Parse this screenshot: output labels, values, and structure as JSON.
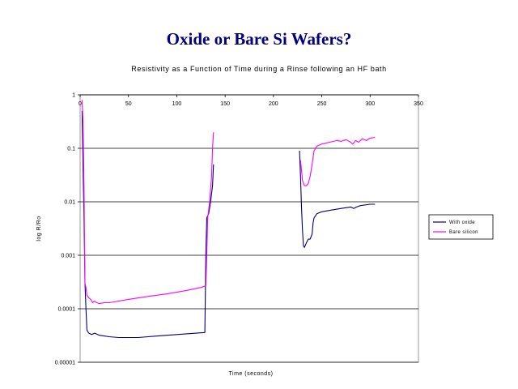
{
  "slide": {
    "title": "Oxide or Bare Si Wafers?"
  },
  "chart_data": {
    "type": "line",
    "title": "Resistivity as a Function of Time during a Rinse following an HF bath",
    "xlabel": "Time (seconds)",
    "ylabel": "log R/Ro",
    "y_scale": "log",
    "xlim": [
      0,
      350
    ],
    "ylim": [
      1e-05,
      1
    ],
    "x_ticks": [
      "0",
      "50",
      "100",
      "150",
      "200",
      "250",
      "300",
      "350"
    ],
    "x_tick_values": [
      0,
      50,
      100,
      150,
      200,
      250,
      300,
      350
    ],
    "y_ticks": [
      "1",
      "0.1",
      "0.01",
      "0.001",
      "0.0001",
      "0.00001"
    ],
    "y_tick_values": [
      1,
      0.1,
      0.01,
      0.001,
      0.0001,
      1e-05
    ],
    "x_axis_position": "top",
    "grid": "horizontal",
    "legend_position": "right",
    "series": [
      {
        "name": "With oxide",
        "color": "#000080",
        "segments": [
          [
            [
              2,
              0.5
            ],
            [
              4,
              0.005
            ],
            [
              5,
              0.0003
            ],
            [
              6,
              0.0001
            ],
            [
              7,
              4e-05
            ],
            [
              9,
              3.5e-05
            ],
            [
              12,
              3.3e-05
            ],
            [
              15,
              3.5e-05
            ],
            [
              20,
              3.2e-05
            ],
            [
              25,
              3.1e-05
            ],
            [
              30,
              3e-05
            ],
            [
              40,
              2.9e-05
            ],
            [
              60,
              2.9e-05
            ],
            [
              80,
              3.1e-05
            ],
            [
              100,
              3.3e-05
            ],
            [
              120,
              3.5e-05
            ],
            [
              129,
              3.6e-05
            ],
            [
              130,
              0.001
            ],
            [
              131,
              0.005
            ],
            [
              133,
              0.006
            ],
            [
              135,
              0.01
            ],
            [
              137,
              0.02
            ],
            [
              138,
              0.05
            ]
          ],
          [
            [
              227,
              0.09
            ],
            [
              228,
              0.03
            ],
            [
              229,
              0.008
            ],
            [
              230,
              0.003
            ],
            [
              231,
              0.0015
            ],
            [
              232,
              0.0014
            ],
            [
              234,
              0.0017
            ],
            [
              236,
              0.002
            ],
            [
              238,
              0.002
            ],
            [
              240,
              0.0025
            ],
            [
              241,
              0.004
            ],
            [
              242,
              0.005
            ],
            [
              245,
              0.006
            ],
            [
              250,
              0.0065
            ],
            [
              260,
              0.007
            ],
            [
              270,
              0.0075
            ],
            [
              280,
              0.008
            ],
            [
              283,
              0.0075
            ],
            [
              286,
              0.008
            ],
            [
              290,
              0.0085
            ],
            [
              300,
              0.009
            ],
            [
              305,
              0.009
            ]
          ]
        ]
      },
      {
        "name": "Bare silicon",
        "color": "#ff00ff",
        "segments": [
          [
            [
              2,
              0.8
            ],
            [
              3,
              0.3
            ],
            [
              4,
              0.02
            ],
            [
              5,
              0.0003
            ],
            [
              6,
              0.00025
            ],
            [
              7,
              0.00018
            ],
            [
              9,
              0.00016
            ],
            [
              11,
              0.00015
            ],
            [
              13,
              0.00013
            ],
            [
              15,
              0.00014
            ],
            [
              17,
              0.00013
            ],
            [
              20,
              0.000125
            ],
            [
              25,
              0.00013
            ],
            [
              30,
              0.00013
            ],
            [
              50,
              0.00015
            ],
            [
              70,
              0.00017
            ],
            [
              90,
              0.00019
            ],
            [
              110,
              0.00022
            ],
            [
              125,
              0.00025
            ],
            [
              130,
              0.00027
            ],
            [
              131,
              0.001
            ],
            [
              132,
              0.005
            ],
            [
              134,
              0.01
            ],
            [
              136,
              0.03
            ],
            [
              137,
              0.1
            ],
            [
              138,
              0.2
            ]
          ],
          [
            [
              228,
              0.06
            ],
            [
              229,
              0.04
            ],
            [
              230,
              0.025
            ],
            [
              232,
              0.02
            ],
            [
              234,
              0.02
            ],
            [
              236,
              0.022
            ],
            [
              238,
              0.03
            ],
            [
              240,
              0.05
            ],
            [
              242,
              0.09
            ],
            [
              245,
              0.11
            ],
            [
              250,
              0.12
            ],
            [
              258,
              0.13
            ],
            [
              266,
              0.14
            ],
            [
              270,
              0.135
            ],
            [
              275,
              0.145
            ],
            [
              280,
              0.13
            ],
            [
              282,
              0.12
            ],
            [
              285,
              0.14
            ],
            [
              288,
              0.13
            ],
            [
              292,
              0.15
            ],
            [
              296,
              0.14
            ],
            [
              300,
              0.155
            ],
            [
              305,
              0.16
            ]
          ]
        ]
      }
    ]
  }
}
